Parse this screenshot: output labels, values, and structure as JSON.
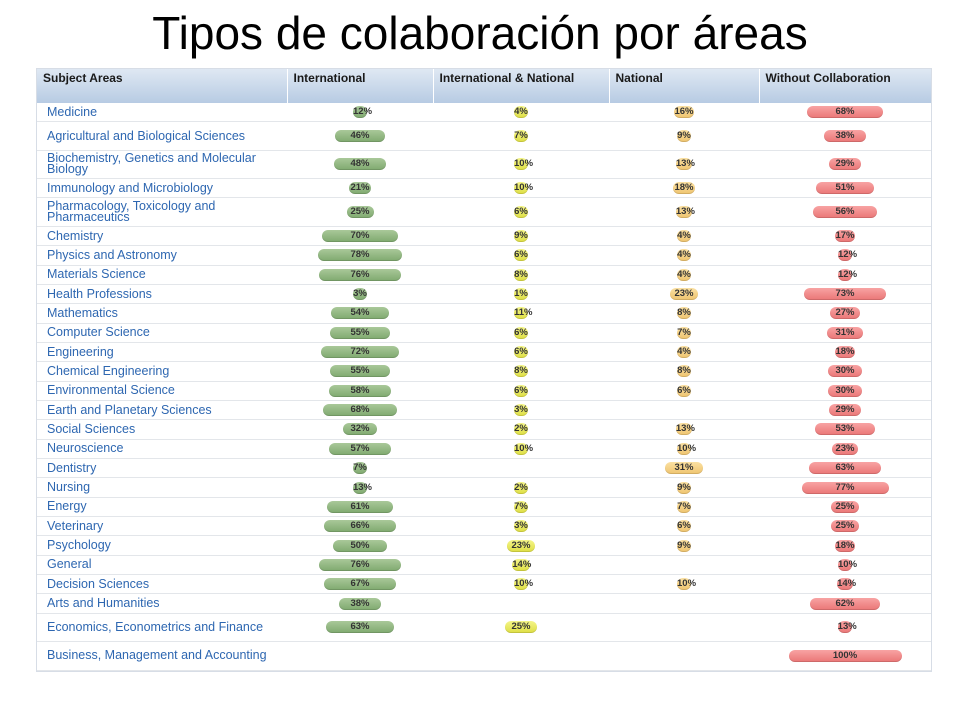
{
  "title": "Tipos de colaboración por áreas",
  "headers": {
    "subject": "Subject Areas",
    "international": "International",
    "intl_national": "International & National",
    "national": "National",
    "without": "Without Collaboration"
  },
  "colors": {
    "international": "#8fb57f",
    "intl_national": "#e6e65a",
    "national": "#f3d086",
    "without": "#ef8787"
  },
  "rows": [
    {
      "subject": "Medicine",
      "international": 12,
      "intl_national": 4,
      "national": 16,
      "without": 68
    },
    {
      "subject": "Agricultural and Biological Sciences",
      "international": 46,
      "intl_national": 7,
      "national": 9,
      "without": 38
    },
    {
      "subject": "Biochemistry, Genetics and Molecular Biology",
      "international": 48,
      "intl_national": 10,
      "national": 13,
      "without": 29
    },
    {
      "subject": "Immunology and Microbiology",
      "international": 21,
      "intl_national": 10,
      "national": 18,
      "without": 51
    },
    {
      "subject": "Pharmacology, Toxicology and Pharmaceutics",
      "international": 25,
      "intl_national": 6,
      "national": 13,
      "without": 56
    },
    {
      "subject": "Chemistry",
      "international": 70,
      "intl_national": 9,
      "national": 4,
      "without": 17
    },
    {
      "subject": "Physics and Astronomy",
      "international": 78,
      "intl_national": 6,
      "national": 4,
      "without": 12
    },
    {
      "subject": "Materials Science",
      "international": 76,
      "intl_national": 8,
      "national": 4,
      "without": 12
    },
    {
      "subject": "Health Professions",
      "international": 3,
      "intl_national": 1,
      "national": 23,
      "without": 73
    },
    {
      "subject": "Mathematics",
      "international": 54,
      "intl_national": 11,
      "national": 8,
      "without": 27
    },
    {
      "subject": "Computer Science",
      "international": 55,
      "intl_national": 6,
      "national": 7,
      "without": 31
    },
    {
      "subject": "Engineering",
      "international": 72,
      "intl_national": 6,
      "national": 4,
      "without": 18
    },
    {
      "subject": "Chemical Engineering",
      "international": 55,
      "intl_national": 8,
      "national": 8,
      "without": 30
    },
    {
      "subject": "Environmental Science",
      "international": 58,
      "intl_national": 6,
      "national": 6,
      "without": 30
    },
    {
      "subject": "Earth and Planetary Sciences",
      "international": 68,
      "intl_national": 3,
      "national": null,
      "without": 29
    },
    {
      "subject": "Social Sciences",
      "international": 32,
      "intl_national": 2,
      "national": 13,
      "without": 53
    },
    {
      "subject": "Neuroscience",
      "international": 57,
      "intl_national": 10,
      "national": 10,
      "without": 23
    },
    {
      "subject": "Dentistry",
      "international": 7,
      "intl_national": null,
      "national": 31,
      "without": 63
    },
    {
      "subject": "Nursing",
      "international": 13,
      "intl_national": 2,
      "national": 9,
      "without": 77
    },
    {
      "subject": "Energy",
      "international": 61,
      "intl_national": 7,
      "national": 7,
      "without": 25
    },
    {
      "subject": "Veterinary",
      "international": 66,
      "intl_national": 3,
      "national": 6,
      "without": 25
    },
    {
      "subject": "Psychology",
      "international": 50,
      "intl_national": 23,
      "national": 9,
      "without": 18
    },
    {
      "subject": "General",
      "international": 76,
      "intl_national": 14,
      "national": null,
      "without": 10
    },
    {
      "subject": "Decision Sciences",
      "international": 67,
      "intl_national": 10,
      "national": 10,
      "without": 14
    },
    {
      "subject": "Arts and Humanities",
      "international": 38,
      "intl_national": null,
      "national": null,
      "without": 62
    },
    {
      "subject": "Economics, Econometrics and Finance",
      "international": 63,
      "intl_national": 25,
      "national": null,
      "without": 13
    },
    {
      "subject": "Business, Management and Accounting",
      "international": null,
      "intl_national": null,
      "national": null,
      "without": 100
    }
  ]
}
